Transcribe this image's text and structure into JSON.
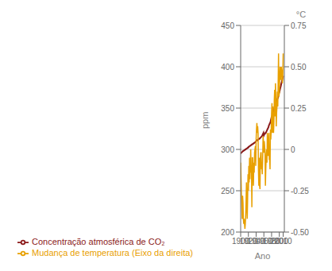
{
  "chart_data": {
    "type": "line",
    "xlabel": "Ano",
    "ylabel": "ppm",
    "y2label": "°C",
    "x": [
      1900,
      1901,
      1902,
      1903,
      1904,
      1905,
      1906,
      1907,
      1908,
      1909,
      1910,
      1911,
      1912,
      1913,
      1914,
      1915,
      1916,
      1917,
      1918,
      1919,
      1920,
      1921,
      1922,
      1923,
      1924,
      1925,
      1926,
      1927,
      1928,
      1929,
      1930,
      1931,
      1932,
      1933,
      1934,
      1935,
      1936,
      1937,
      1938,
      1939,
      1940,
      1941,
      1942,
      1943,
      1944,
      1945,
      1946,
      1947,
      1948,
      1949,
      1950,
      1951,
      1952,
      1953,
      1954,
      1955,
      1956,
      1957,
      1958,
      1959,
      1960,
      1961,
      1962,
      1963,
      1964,
      1965,
      1966,
      1967,
      1968,
      1969,
      1970,
      1971,
      1972,
      1973,
      1974,
      1975,
      1976,
      1977,
      1978,
      1979,
      1980,
      1981,
      1982,
      1983,
      1984,
      1985,
      1986,
      1987,
      1988,
      1989,
      1990,
      1991,
      1992,
      1993,
      1994,
      1995,
      1996,
      1997,
      1998,
      1999,
      2000,
      2001,
      2002,
      2003,
      2004,
      2005,
      2006,
      2007,
      2008,
      2009,
      2010
    ],
    "series": [
      {
        "name": "Concentração atmosférica de CO₂",
        "color": "#8B1A1A",
        "values": [
          295,
          295.5,
          296,
          296.5,
          297,
          297.5,
          298,
          298,
          298.5,
          299,
          299,
          299.5,
          300,
          300,
          300.5,
          301,
          301,
          301.5,
          302,
          302,
          303,
          303,
          303.5,
          304,
          304,
          304.5,
          305,
          305,
          305.5,
          306,
          306,
          306.5,
          307,
          307,
          307.5,
          308,
          308,
          308.5,
          309,
          309,
          310,
          310.5,
          311,
          311,
          311.5,
          312,
          312,
          312.5,
          313,
          313,
          313.5,
          314,
          314.5,
          315,
          315.5,
          316,
          317,
          318,
          319,
          320,
          317,
          318,
          319,
          319,
          320,
          320,
          321,
          322,
          323,
          324,
          325,
          326,
          327,
          329,
          330,
          331,
          332,
          333,
          335,
          337,
          339,
          340,
          341,
          343,
          344,
          346,
          347,
          349,
          352,
          353,
          354,
          355,
          356,
          357,
          359,
          361,
          362,
          363,
          366,
          368,
          369,
          371,
          373,
          375,
          377,
          379,
          381,
          383,
          385,
          387,
          389
        ]
      },
      {
        "name": "Mudança de temperatura (Eixo da direita)",
        "color": "#E8A000",
        "axis": "y2",
        "values": [
          -0.08,
          -0.18,
          -0.28,
          -0.35,
          -0.42,
          -0.28,
          -0.32,
          -0.42,
          -0.45,
          -0.42,
          -0.45,
          -0.48,
          -0.45,
          -0.4,
          -0.32,
          -0.2,
          -0.35,
          -0.42,
          -0.3,
          -0.15,
          -0.25,
          -0.1,
          -0.2,
          -0.05,
          -0.18,
          -0.1,
          0.0,
          -0.14,
          -0.1,
          -0.35,
          -0.05,
          -0.05,
          -0.15,
          -0.22,
          -0.08,
          -0.14,
          -0.02,
          -0.0,
          0.02,
          -0.1,
          0.06,
          0.12,
          0.16,
          0.1,
          0.14,
          0.1,
          -0.12,
          -0.22,
          -0.05,
          -0.22,
          -0.24,
          -0.05,
          -0.02,
          -0.02,
          -0.12,
          -0.1,
          -0.15,
          -0.05,
          0.08,
          0.05,
          -0.02,
          0.05,
          0.02,
          -0.02,
          -0.22,
          -0.12,
          -0.05,
          0.0,
          -0.08,
          0.1,
          0.04,
          -0.04,
          0.04,
          0.1,
          -0.06,
          -0.06,
          -0.12,
          0.12,
          0.06,
          0.12,
          0.22,
          0.28,
          0.1,
          0.26,
          0.15,
          0.1,
          0.16,
          0.3,
          0.36,
          0.2,
          0.4,
          0.32,
          0.14,
          0.22,
          0.26,
          0.35,
          0.26,
          0.4,
          0.58,
          0.32,
          0.34,
          0.44,
          0.5,
          0.48,
          0.42,
          0.5,
          0.48,
          0.46,
          0.4,
          0.44,
          0.58
        ]
      }
    ],
    "xlim": [
      1900,
      2013
    ],
    "xticks": [
      1900,
      1920,
      1940,
      1960,
      1980,
      2000,
      2010
    ],
    "ylim": [
      200,
      450
    ],
    "yticks": [
      200,
      250,
      300,
      350,
      400,
      450
    ],
    "y2lim": [
      -0.5,
      0.75
    ],
    "y2ticks": [
      {
        "value": -0.5,
        "label": "-0.50"
      },
      -0.25,
      0,
      0.25,
      {
        "value": 0.5,
        "label": "0.50"
      },
      0.75
    ],
    "grid": "y",
    "legend": "bottom"
  }
}
